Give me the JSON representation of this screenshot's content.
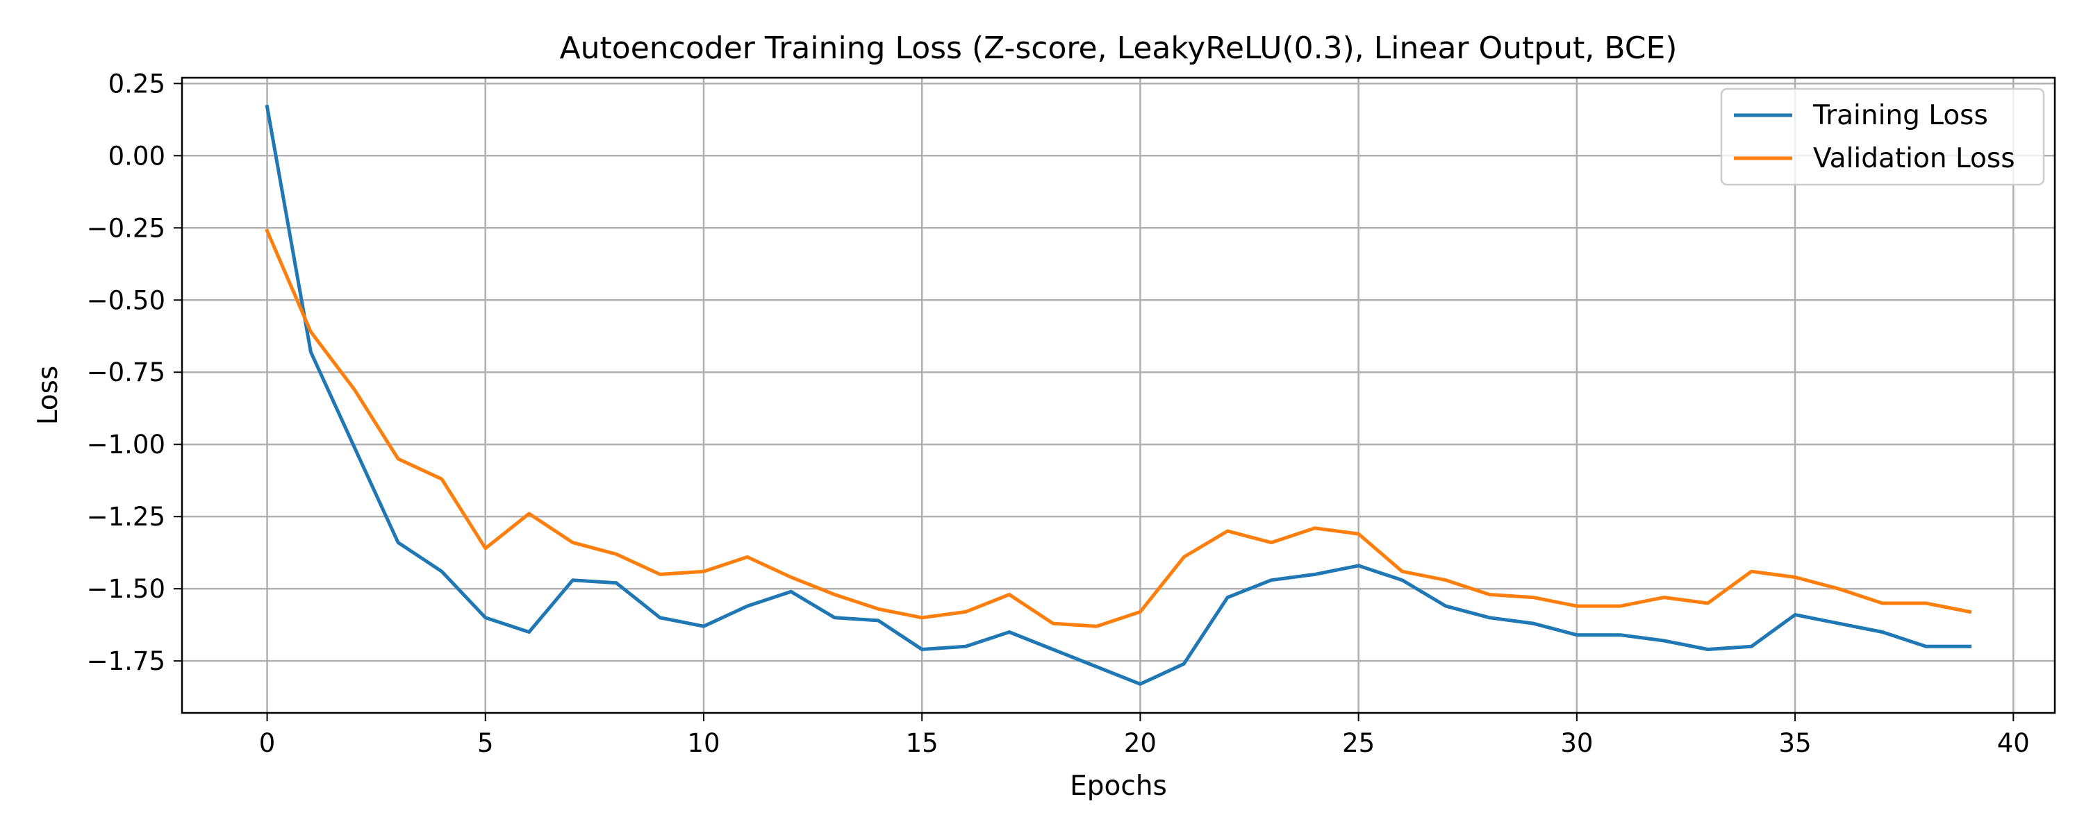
{
  "chart_data": {
    "type": "line",
    "title": "Autoencoder Training Loss (Z-score, LeakyReLU(0.3), Linear Output, BCE)",
    "xlabel": "Epochs",
    "ylabel": "Loss",
    "xlim": [
      -1.95,
      40.95
    ],
    "ylim": [
      -1.93,
      0.27
    ],
    "xticks": [
      0,
      5,
      10,
      15,
      20,
      25,
      30,
      35,
      40
    ],
    "xtick_labels": [
      "0",
      "5",
      "10",
      "15",
      "20",
      "25",
      "30",
      "35",
      "40"
    ],
    "yticks": [
      0.25,
      0.0,
      -0.25,
      -0.5,
      -0.75,
      -1.0,
      -1.25,
      -1.5,
      -1.75
    ],
    "ytick_labels": [
      "0.25",
      "0.00",
      "−0.25",
      "−0.50",
      "−0.75",
      "−1.00",
      "−1.25",
      "−1.50",
      "−1.75"
    ],
    "grid": true,
    "legend_position": "top-right",
    "x": [
      0,
      1,
      2,
      3,
      4,
      5,
      6,
      7,
      8,
      9,
      10,
      11,
      12,
      13,
      14,
      15,
      16,
      17,
      18,
      19,
      20,
      21,
      22,
      23,
      24,
      25,
      26,
      27,
      28,
      29,
      30,
      31,
      32,
      33,
      34,
      35,
      36,
      37,
      38,
      39
    ],
    "series": [
      {
        "name": "Training Loss",
        "color": "#1f77b4",
        "values": [
          0.17,
          -0.68,
          -1.01,
          -1.34,
          -1.44,
          -1.6,
          -1.65,
          -1.47,
          -1.48,
          -1.6,
          -1.63,
          -1.56,
          -1.51,
          -1.6,
          -1.61,
          -1.71,
          -1.7,
          -1.65,
          -1.71,
          -1.77,
          -1.83,
          -1.76,
          -1.53,
          -1.47,
          -1.45,
          -1.42,
          -1.47,
          -1.56,
          -1.6,
          -1.62,
          -1.66,
          -1.66,
          -1.68,
          -1.71,
          -1.7,
          -1.59,
          -1.62,
          -1.65,
          -1.7,
          -1.7
        ]
      },
      {
        "name": "Validation Loss",
        "color": "#ff7f0e",
        "values": [
          -0.26,
          -0.61,
          -0.81,
          -1.05,
          -1.12,
          -1.36,
          -1.24,
          -1.34,
          -1.38,
          -1.45,
          -1.44,
          -1.39,
          -1.46,
          -1.52,
          -1.57,
          -1.6,
          -1.58,
          -1.52,
          -1.62,
          -1.63,
          -1.58,
          -1.39,
          -1.3,
          -1.34,
          -1.29,
          -1.31,
          -1.44,
          -1.47,
          -1.52,
          -1.53,
          -1.56,
          -1.56,
          -1.53,
          -1.55,
          -1.44,
          -1.46,
          -1.5,
          -1.55,
          -1.55,
          -1.58
        ]
      }
    ]
  }
}
